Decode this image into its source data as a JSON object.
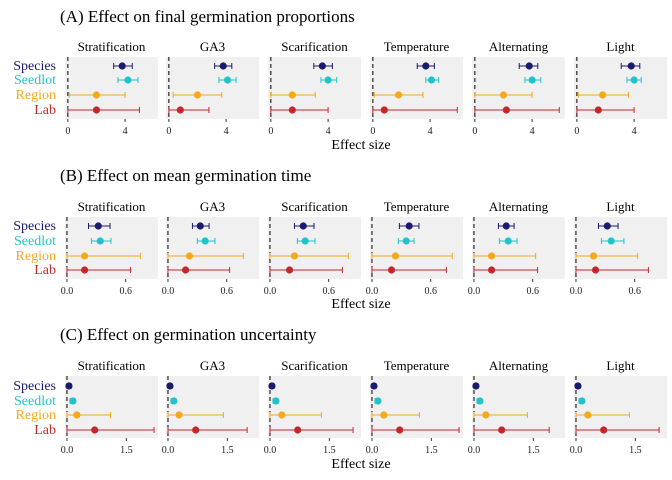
{
  "colors": {
    "Species": "#1c1a6b",
    "Seedlot": "#1fc4c9",
    "Region": "#f4a81c",
    "Lab": "#c2272d",
    "panel_bg": "#f0f0f0"
  },
  "levels": [
    "Species",
    "Seedlot",
    "Region",
    "Lab"
  ],
  "treatments": [
    "Stratification",
    "GA3",
    "Scarification",
    "Temperature",
    "Alternating",
    "Light"
  ],
  "chart_data": [
    {
      "type": "forest",
      "title": "(A) Effect on final germination proportions",
      "xlabel": "Effect size",
      "xlim": [
        -0.2,
        6.3
      ],
      "ticks": [
        0,
        4
      ],
      "tick_labels": [
        "0",
        "4"
      ],
      "series": [
        {
          "name": "Species",
          "points": [
            [
              3.8,
              3.2,
              4.5
            ],
            [
              3.8,
              3.2,
              4.4
            ],
            [
              3.6,
              3.0,
              4.3
            ],
            [
              3.7,
              3.1,
              4.3
            ],
            [
              3.8,
              3.1,
              4.4
            ],
            [
              3.8,
              3.1,
              4.4
            ]
          ]
        },
        {
          "name": "Seedlot",
          "points": [
            [
              4.2,
              3.5,
              4.9
            ],
            [
              4.1,
              3.5,
              4.7
            ],
            [
              4.0,
              3.5,
              4.6
            ],
            [
              4.1,
              3.7,
              4.6
            ],
            [
              4.0,
              3.5,
              4.6
            ],
            [
              4.0,
              3.5,
              4.5
            ]
          ]
        },
        {
          "name": "Region",
          "points": [
            [
              2.0,
              0.1,
              4.0
            ],
            [
              2.0,
              0.3,
              3.7
            ],
            [
              1.5,
              0.0,
              3.1
            ],
            [
              1.8,
              0.1,
              3.5
            ],
            [
              2.0,
              0.0,
              4.0
            ],
            [
              1.8,
              0.1,
              3.6
            ]
          ]
        },
        {
          "name": "Lab",
          "points": [
            [
              2.0,
              0.0,
              5.0
            ],
            [
              0.8,
              0.0,
              2.8
            ],
            [
              1.5,
              0.0,
              4.0
            ],
            [
              0.8,
              0.0,
              5.9
            ],
            [
              2.2,
              0.0,
              5.9
            ],
            [
              1.5,
              0.0,
              4.0
            ]
          ]
        }
      ]
    },
    {
      "type": "forest",
      "title": "(B) Effect on mean germination time",
      "xlabel": "Effect size",
      "xlim": [
        -0.02,
        0.93
      ],
      "ticks": [
        0,
        0.6
      ],
      "tick_labels": [
        "0.0",
        "0.6"
      ],
      "series": [
        {
          "name": "Species",
          "points": [
            [
              0.32,
              0.22,
              0.44
            ],
            [
              0.33,
              0.25,
              0.42
            ],
            [
              0.34,
              0.25,
              0.45
            ],
            [
              0.38,
              0.28,
              0.48
            ],
            [
              0.33,
              0.25,
              0.41
            ],
            [
              0.32,
              0.23,
              0.43
            ]
          ]
        },
        {
          "name": "Seedlot",
          "points": [
            [
              0.34,
              0.25,
              0.45
            ],
            [
              0.38,
              0.3,
              0.48
            ],
            [
              0.36,
              0.28,
              0.46
            ],
            [
              0.35,
              0.27,
              0.43
            ],
            [
              0.35,
              0.26,
              0.44
            ],
            [
              0.36,
              0.26,
              0.49
            ]
          ]
        },
        {
          "name": "Region",
          "points": [
            [
              0.18,
              0.0,
              0.75
            ],
            [
              0.22,
              0.0,
              0.77
            ],
            [
              0.25,
              0.0,
              0.8
            ],
            [
              0.24,
              0.0,
              0.82
            ],
            [
              0.18,
              0.0,
              0.63
            ],
            [
              0.18,
              0.0,
              0.63
            ]
          ]
        },
        {
          "name": "Lab",
          "points": [
            [
              0.18,
              0.0,
              0.65
            ],
            [
              0.18,
              0.0,
              0.63
            ],
            [
              0.2,
              0.0,
              0.74
            ],
            [
              0.2,
              0.0,
              0.76
            ],
            [
              0.18,
              0.0,
              0.65
            ],
            [
              0.2,
              0.0,
              0.74
            ]
          ]
        }
      ]
    },
    {
      "type": "forest",
      "title": "(C) Effect on germination uncertainty",
      "xlabel": "Effect size",
      "xlim": [
        -0.05,
        2.3
      ],
      "ticks": [
        0,
        1.5
      ],
      "tick_labels": [
        "0.0",
        "1.5"
      ],
      "series": [
        {
          "name": "Species",
          "points": [
            [
              0.05,
              0.0,
              0.1
            ],
            [
              0.05,
              0.0,
              0.1
            ],
            [
              0.05,
              0.0,
              0.1
            ],
            [
              0.05,
              0.0,
              0.1
            ],
            [
              0.05,
              0.0,
              0.1
            ],
            [
              0.05,
              0.0,
              0.1
            ]
          ]
        },
        {
          "name": "Seedlot",
          "points": [
            [
              0.15,
              0.08,
              0.2
            ],
            [
              0.15,
              0.08,
              0.2
            ],
            [
              0.15,
              0.08,
              0.2
            ],
            [
              0.15,
              0.08,
              0.2
            ],
            [
              0.15,
              0.08,
              0.2
            ],
            [
              0.15,
              0.08,
              0.2
            ]
          ]
        },
        {
          "name": "Region",
          "points": [
            [
              0.25,
              0.0,
              1.1
            ],
            [
              0.28,
              0.0,
              1.4
            ],
            [
              0.3,
              0.0,
              1.3
            ],
            [
              0.3,
              0.0,
              1.2
            ],
            [
              0.3,
              0.0,
              1.35
            ],
            [
              0.3,
              0.0,
              1.35
            ]
          ]
        },
        {
          "name": "Lab",
          "points": [
            [
              0.7,
              0.0,
              2.2
            ],
            [
              0.7,
              0.0,
              2.0
            ],
            [
              0.7,
              0.0,
              2.1
            ],
            [
              0.7,
              0.0,
              2.2
            ],
            [
              0.7,
              0.0,
              1.9
            ],
            [
              0.7,
              0.0,
              2.1
            ]
          ]
        }
      ]
    }
  ]
}
